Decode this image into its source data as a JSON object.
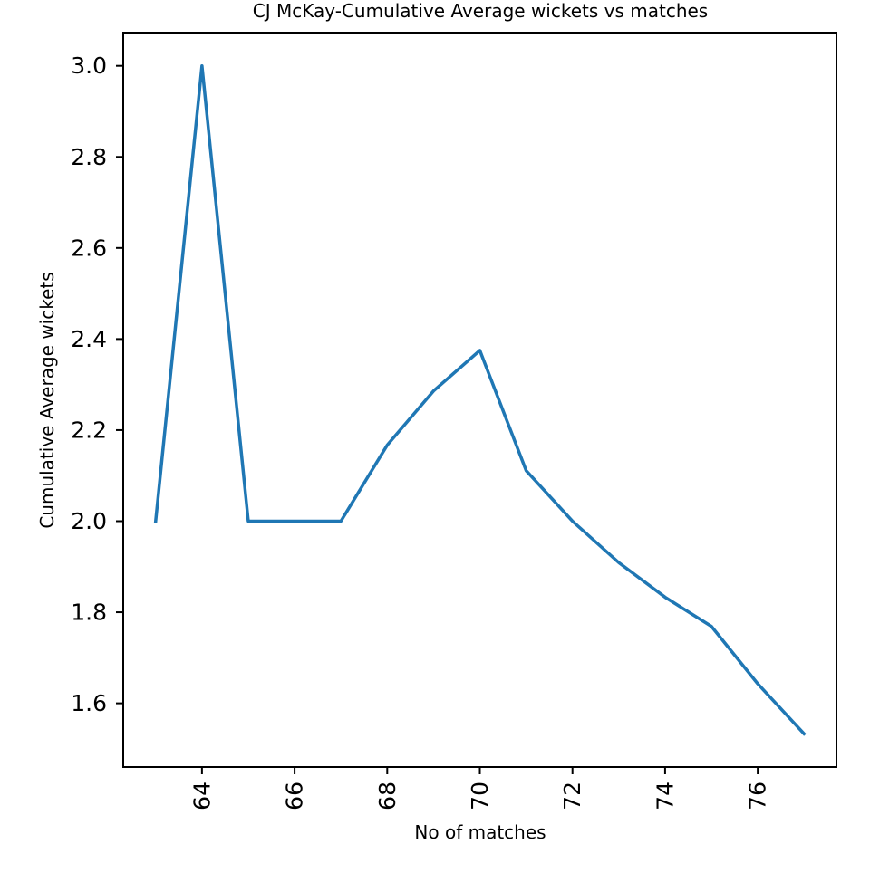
{
  "chart_data": {
    "type": "line",
    "title": "CJ McKay-Cumulative Average wickets vs matches",
    "xlabel": "No of matches",
    "ylabel": "Cumulative Average wickets",
    "x": [
      63,
      64,
      65,
      66,
      67,
      68,
      69,
      70,
      71,
      72,
      73,
      74,
      75,
      76,
      77
    ],
    "series": [
      {
        "values": [
          2.0,
          3.0,
          2.0,
          2.0,
          2.0,
          2.167,
          2.286,
          2.375,
          2.111,
          2.0,
          1.909,
          1.833,
          1.769,
          1.643,
          1.533
        ],
        "color": "#1f77b4"
      }
    ],
    "xticks": [
      64,
      66,
      68,
      70,
      72,
      74,
      76
    ],
    "xtick_labels": [
      "64",
      "66",
      "68",
      "70",
      "72",
      "74",
      "76"
    ],
    "yticks": [
      1.6,
      1.8,
      2.0,
      2.2,
      2.4,
      2.6,
      2.8,
      3.0
    ],
    "ytick_labels": [
      "1.6",
      "1.8",
      "2.0",
      "2.2",
      "2.4",
      "2.6",
      "2.8",
      "3.0"
    ],
    "xlim": [
      62.3,
      77.7
    ],
    "ylim": [
      1.46,
      3.073
    ],
    "grid": false,
    "legend": "none",
    "xtick_rotation": "vertical"
  }
}
